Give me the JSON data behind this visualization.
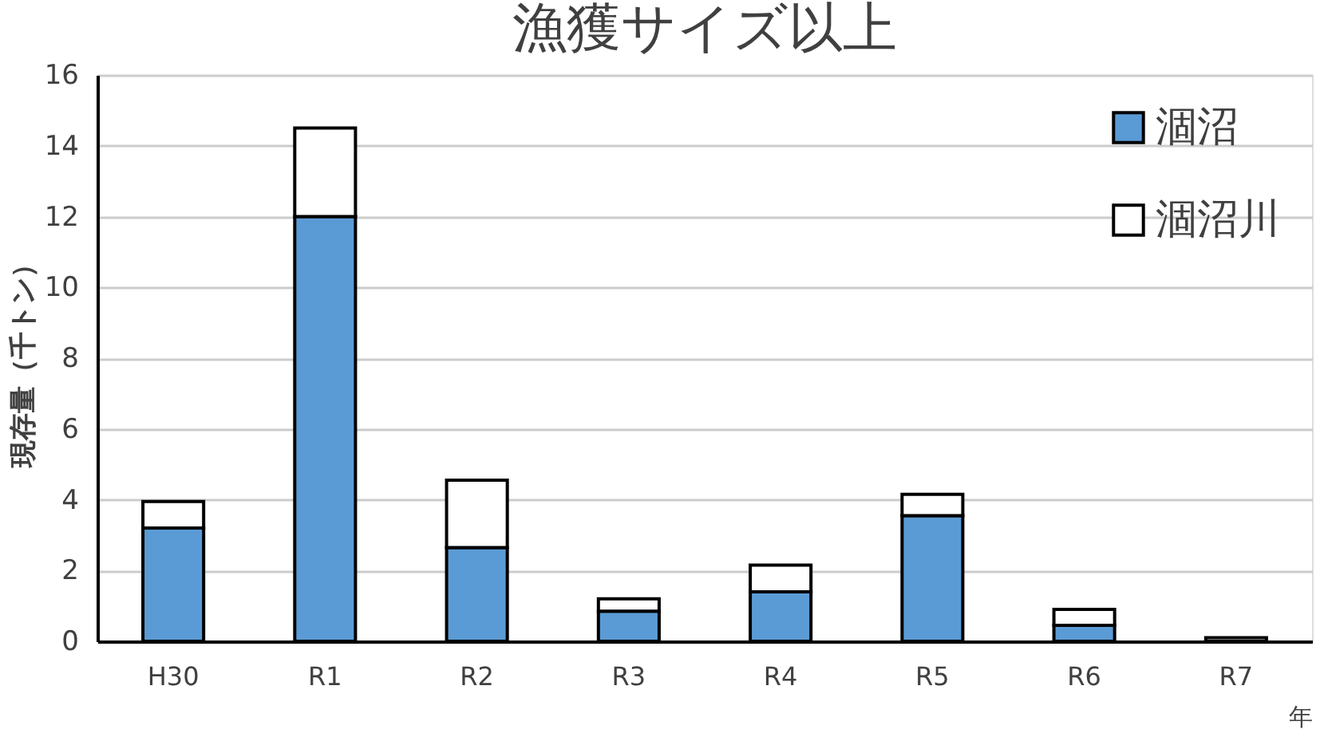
{
  "chart_data": {
    "type": "bar",
    "title": "漁獲サイズ以上",
    "xlabel": "年",
    "ylabel": "現存量（千トン）",
    "categories": [
      "H30",
      "R1",
      "R2",
      "R3",
      "R4",
      "R5",
      "R6",
      "R7"
    ],
    "stacked": true,
    "series": [
      {
        "name": "涸沼",
        "color": "#5b9bd5",
        "values": [
          3.2,
          12.0,
          2.65,
          0.85,
          1.4,
          3.55,
          0.45,
          null
        ]
      },
      {
        "name": "涸沼川",
        "color": "#ffffff",
        "values": [
          0.75,
          2.5,
          1.9,
          0.35,
          0.75,
          0.6,
          0.45,
          0.1
        ]
      }
    ],
    "ylim": [
      0,
      16
    ],
    "yticks": [
      0,
      2,
      4,
      6,
      8,
      10,
      12,
      14,
      16
    ],
    "grid": "y",
    "legend": "top right"
  }
}
